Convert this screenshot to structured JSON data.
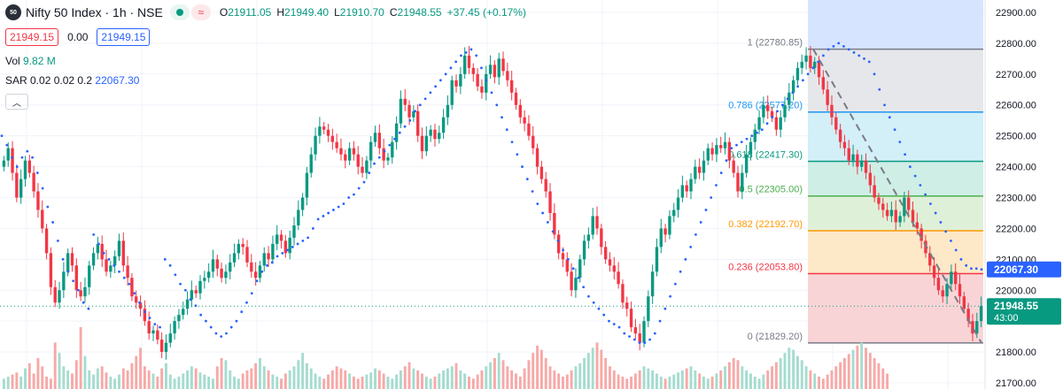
{
  "header": {
    "logo_text": "50",
    "symbol": "Nifty 50 Index · 1h · NSE",
    "market_status_icon": "green-dot-icon",
    "wave_icon": "≈",
    "open_label": "O",
    "open": "21911.05",
    "high_label": "H",
    "high": "21949.40",
    "low_label": "L",
    "low": "21910.70",
    "close_label": "C",
    "close": "21948.55",
    "change": "+37.45 (+0.17%)"
  },
  "trade": {
    "sell": "21949.15",
    "spread": "0.00",
    "buy": "21949.15"
  },
  "indicators": {
    "vol_label": "Vol",
    "vol_value": "9.82 M",
    "sar_label": "SAR 0.02 0.02 0.2",
    "sar_value": "22067.30"
  },
  "collapse_icon": "chevron-up-icon",
  "colors": {
    "up": "#089981",
    "down": "#f23645",
    "sar": "#2962ff",
    "vol_up": "#a5dccf",
    "vol_down": "#f7a9a7"
  },
  "chart_data": {
    "type": "candlestick",
    "yaxis": {
      "ticks": [
        "22900.00",
        "22800.00",
        "22700.00",
        "22600.00",
        "22500.00",
        "22400.00",
        "22300.00",
        "22200.00",
        "22100.00",
        "22000.00",
        "21900.00",
        "21800.00",
        "21700.00"
      ],
      "range": [
        21680,
        22940
      ]
    },
    "price_labels": [
      {
        "value": 22067.3,
        "text": "22067.30",
        "color": "#2962ff"
      },
      {
        "value": 21948.55,
        "text": "21948.55",
        "sub": "43:00",
        "color": "#089981"
      }
    ],
    "fib": [
      {
        "level": "1",
        "value": 22780.85,
        "label": "1 (22780.85)",
        "color": "#787b86",
        "fill": "#e6e7ea"
      },
      {
        "level": "0.786",
        "value": 22577.2,
        "label": "0.786 (22577.20)",
        "color": "#2196f3",
        "fill": "#d3eff7"
      },
      {
        "level": "0.618",
        "value": 22417.3,
        "label": "0.618 (22417.30)",
        "color": "#089981",
        "fill": "#cfeee6"
      },
      {
        "level": "0.5",
        "value": 22305.0,
        "label": "0.5 (22305.00)",
        "color": "#4caf50",
        "fill": "#dff0d8"
      },
      {
        "level": "0.382",
        "value": 22192.7,
        "label": "0.382 (22192.70)",
        "color": "#ff9800",
        "fill": "#fde8c8"
      },
      {
        "level": "0.236",
        "value": 22053.8,
        "label": "0.236 (22053.80)",
        "color": "#f23645",
        "fill": "#f9d4d6"
      },
      {
        "level": "0",
        "value": 21829.2,
        "label": "0 (21829.20)",
        "color": "#787b86"
      }
    ],
    "close_series": [
      22420,
      22460,
      22380,
      22300,
      22360,
      22420,
      22380,
      22320,
      22260,
      22200,
      22120,
      22010,
      21960,
      22000,
      22060,
      22120,
      22080,
      22000,
      21980,
      22010,
      22080,
      22120,
      22150,
      22100,
      22060,
      22080,
      22110,
      22160,
      22080,
      22040,
      21980,
      21960,
      21940,
      21900,
      21860,
      21870,
      21840,
      21800,
      21830,
      21860,
      21900,
      21920,
      21940,
      21970,
      22000,
      21990,
      22030,
      22040,
      22060,
      22100,
      22070,
      22040,
      22060,
      22090,
      22120,
      22150,
      22140,
      22090,
      22060,
      22040,
      22080,
      22120,
      22100,
      22150,
      22180,
      22160,
      22120,
      22170,
      22210,
      22260,
      22300,
      22380,
      22440,
      22500,
      22530,
      22520,
      22500,
      22480,
      22460,
      22440,
      22420,
      22460,
      22440,
      22400,
      22380,
      22420,
      22480,
      22510,
      22460,
      22420,
      22430,
      22480,
      22540,
      22620,
      22600,
      22560,
      22580,
      22500,
      22450,
      22500,
      22520,
      22490,
      22510,
      22560,
      22600,
      22680,
      22660,
      22700,
      22760,
      22720,
      22700,
      22660,
      22640,
      22700,
      22730,
      22690,
      22750,
      22710,
      22680,
      22640,
      22600,
      22560,
      22540,
      22500,
      22460,
      22400,
      22360,
      22320,
      22250,
      22180,
      22120,
      22100,
      22060,
      22000,
      22040,
      22100,
      22160,
      22180,
      22240,
      22200,
      22140,
      22100,
      22080,
      22060,
      22020,
      21960,
      21940,
      21880,
      21860,
      21830,
      21900,
      21980,
      22060,
      22140,
      22200,
      22180,
      22240,
      22260,
      22300,
      22340,
      22320,
      22360,
      22400,
      22380,
      22420,
      22460,
      22440,
      22470,
      22460,
      22480,
      22420,
      22380,
      22320,
      22380,
      22440,
      22480,
      22520,
      22560,
      22600,
      22580,
      22560,
      22520,
      22560,
      22600,
      22640,
      22680,
      22720,
      22740,
      22760,
      22720,
      22740,
      22690,
      22650,
      22600,
      22560,
      22520,
      22480,
      22460,
      22420,
      22440,
      22400,
      22420,
      22380,
      22340,
      22300,
      22280,
      22260,
      22240,
      22260,
      22220,
      22240,
      22300,
      22260,
      22220,
      22200,
      22160,
      22120,
      22080,
      22040,
      22000,
      21980,
      22020,
      22060,
      22020,
      21980,
      21940,
      21900,
      21860,
      21900,
      21948.55
    ],
    "sar_series": [
      22500,
      22470,
      22430,
      22400,
      22430,
      22450,
      22430,
      22380,
      22330,
      22270,
      22220,
      22160,
      22100,
      22060,
      22030,
      22000,
      21960,
      21940,
      22180,
      22150,
      22120,
      22100,
      22080,
      22060,
      22040,
      22020,
      21990,
      21960,
      21930,
      21910,
      21890,
      21880,
      22100,
      22080,
      22050,
      22020,
      22000,
      21970,
      21950,
      21920,
      21900,
      21880,
      21860,
      21850,
      21860,
      21880,
      21900,
      21930,
      21960,
      21990,
      22030,
      22060,
      22080,
      22090,
      22110,
      22120,
      22130,
      22140,
      22150,
      22160,
      22170,
      22200,
      22230,
      22240,
      22250,
      22260,
      22270,
      22280,
      22300,
      22310,
      22330,
      22350,
      22380,
      22410,
      22430,
      22450,
      22470,
      22490,
      22510,
      22530,
      22550,
      22580,
      22600,
      22620,
      22640,
      22660,
      22680,
      22700,
      22720,
      22740,
      22760,
      22770,
      22780,
      22760,
      22720,
      22680,
      22640,
      22600,
      22560,
      22520,
      22480,
      22440,
      22400,
      22360,
      22320,
      22280,
      22250,
      22220,
      22190,
      22160,
      22130,
      22100,
      22070,
      22040,
      22010,
      21980,
      21960,
      21940,
      21920,
      21900,
      21890,
      21880,
      21860,
      21850,
      21840,
      21830,
      21830,
      21840,
      21860,
      21900,
      21940,
      21980,
      22020,
      22060,
      22100,
      22140,
      22180,
      22220,
      22260,
      22300,
      22340,
      22380,
      22420,
      22460,
      22470,
      22480,
      22490,
      22500,
      22510,
      22520,
      22540,
      22560,
      22580,
      22600,
      22620,
      22640,
      22660,
      22680,
      22700,
      22720,
      22740,
      22760,
      22780,
      22790,
      22800,
      22790,
      22780,
      22770,
      22760,
      22750,
      22740,
      22700,
      22650,
      22600,
      22560,
      22520,
      22480,
      22440,
      22400,
      22370,
      22340,
      22310,
      22280,
      22250,
      22220,
      22190,
      22160,
      22130,
      22100,
      22080,
      22070,
      22070,
      22067.3
    ],
    "volume_series": [
      10,
      12,
      14,
      16,
      12,
      20,
      25,
      15,
      30,
      22,
      12,
      10,
      45,
      35,
      22,
      18,
      15,
      28,
      60,
      32,
      18,
      14,
      20,
      22,
      16,
      12,
      10,
      14,
      20,
      18,
      25,
      32,
      40,
      22,
      18,
      15,
      12,
      20,
      25,
      14,
      10,
      12,
      15,
      18,
      22,
      20,
      16,
      14,
      12,
      10,
      22,
      30,
      28,
      18,
      12,
      10,
      15,
      18,
      20,
      25,
      30,
      22,
      18,
      14,
      12,
      10,
      15,
      18,
      22,
      28,
      35,
      25,
      20,
      15,
      12,
      10,
      14,
      18,
      22,
      20,
      18,
      15,
      12,
      10,
      12,
      14,
      16,
      20,
      18,
      15,
      12,
      10,
      14,
      18,
      22,
      26,
      20,
      18,
      15,
      12,
      10,
      12,
      15,
      18,
      20,
      22,
      25,
      18,
      15,
      12,
      10,
      14,
      18,
      22,
      26,
      30,
      35,
      28,
      22,
      18,
      15,
      12,
      20,
      28,
      35,
      42,
      38,
      30,
      22,
      18,
      15,
      12,
      14,
      18,
      22,
      25,
      30,
      35,
      40,
      45,
      38,
      30,
      22,
      18,
      14,
      12,
      10,
      12,
      15,
      18,
      22,
      20,
      18,
      15,
      12,
      10,
      12,
      14,
      16,
      18,
      20,
      22,
      18,
      15,
      12,
      10,
      12,
      15,
      18,
      22,
      26,
      30,
      28,
      22,
      18,
      15,
      12,
      10,
      14,
      18,
      22,
      26,
      30,
      35,
      40,
      38,
      32,
      28,
      22,
      18,
      15,
      12,
      10,
      14,
      18,
      22,
      26,
      30,
      34,
      38,
      42,
      45,
      40,
      35,
      30,
      25,
      20,
      15
    ]
  }
}
